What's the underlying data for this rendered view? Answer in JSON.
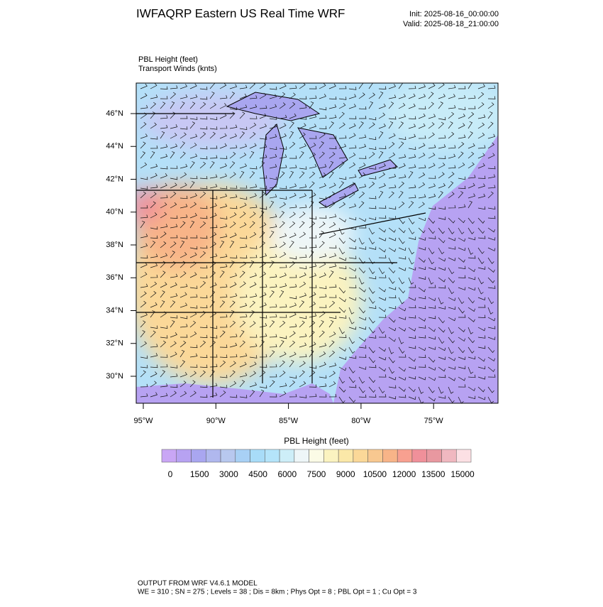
{
  "header": {
    "title": "IWFAQRP Eastern US Real Time WRF",
    "init": "Init: 2025-08-16_00:00:00",
    "valid": "Valid: 2025-08-18_21:00:00"
  },
  "fields": [
    "PBL Height   (feet)",
    "Transport Winds   (knts)"
  ],
  "map": {
    "lat_labels": [
      "46°N",
      "44°N",
      "42°N",
      "40°N",
      "38°N",
      "36°N",
      "34°N",
      "32°N",
      "30°N"
    ],
    "lon_labels": [
      "95°W",
      "90°W",
      "85°W",
      "80°W",
      "75°W"
    ]
  },
  "colorbar": {
    "title": "PBL Height  (feet)",
    "labels": [
      0,
      1500,
      3000,
      4500,
      6000,
      7500,
      9000,
      10500,
      12000,
      13500,
      15000
    ],
    "colors": [
      "#c9a6f5",
      "#b7a2f2",
      "#a9a6f0",
      "#b0b8ee",
      "#b8c8ef",
      "#a8d0f5",
      "#a8dcf8",
      "#b4e4fa",
      "#cdeef8",
      "#eef6f8",
      "#fbfbe6",
      "#fbf3c0",
      "#fbe8a8",
      "#fbd898",
      "#f8c890",
      "#f8b488",
      "#f8a090",
      "#f0909a",
      "#e898a0",
      "#f0b8c0",
      "#fce0e4"
    ]
  },
  "footer": [
    "OUTPUT FROM WRF V4.6.1 MODEL",
    "WE = 310 ; SN = 275 ; Levels = 38 ; Dis = 8km ; Phys Opt = 8 ; PBL Opt = 1 ; Cu Opt = 3"
  ]
}
